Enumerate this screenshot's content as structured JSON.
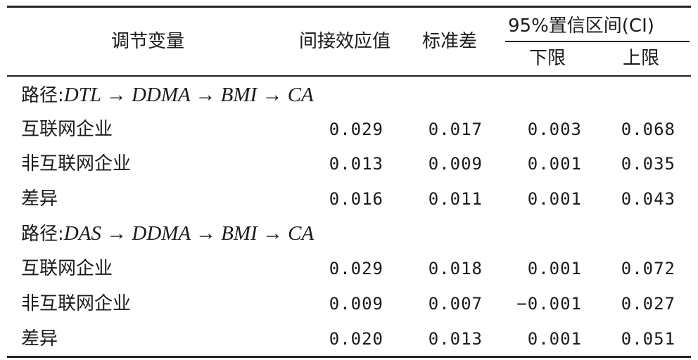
{
  "header": {
    "moderator": "调节变量",
    "indirect_effect": "间接效应值",
    "std_error": "标准差",
    "ci_group": "95%置信区间(CI)",
    "lower": "下限",
    "upper": "上限"
  },
  "groups": [
    {
      "path_prefix": "路径:",
      "path": "DTL → DDMA → BMI → CA",
      "rows": [
        {
          "label": "互联网企业",
          "effect": "0.029",
          "se": "0.017",
          "lower": "0.003",
          "upper": "0.068"
        },
        {
          "label": "非互联网企业",
          "effect": "0.013",
          "se": "0.009",
          "lower": "0.001",
          "upper": "0.035"
        },
        {
          "label": "差异",
          "effect": "0.016",
          "se": "0.011",
          "lower": "0.001",
          "upper": "0.043"
        }
      ]
    },
    {
      "path_prefix": "路径:",
      "path": "DAS → DDMA → BMI → CA",
      "rows": [
        {
          "label": "互联网企业",
          "effect": "0.029",
          "se": "0.018",
          "lower": "0.001",
          "upper": "0.072"
        },
        {
          "label": "非互联网企业",
          "effect": "0.009",
          "se": "0.007",
          "lower": "−0.001",
          "upper": "0.027"
        },
        {
          "label": "差异",
          "effect": "0.020",
          "se": "0.013",
          "lower": "0.001",
          "upper": "0.051"
        }
      ]
    }
  ]
}
